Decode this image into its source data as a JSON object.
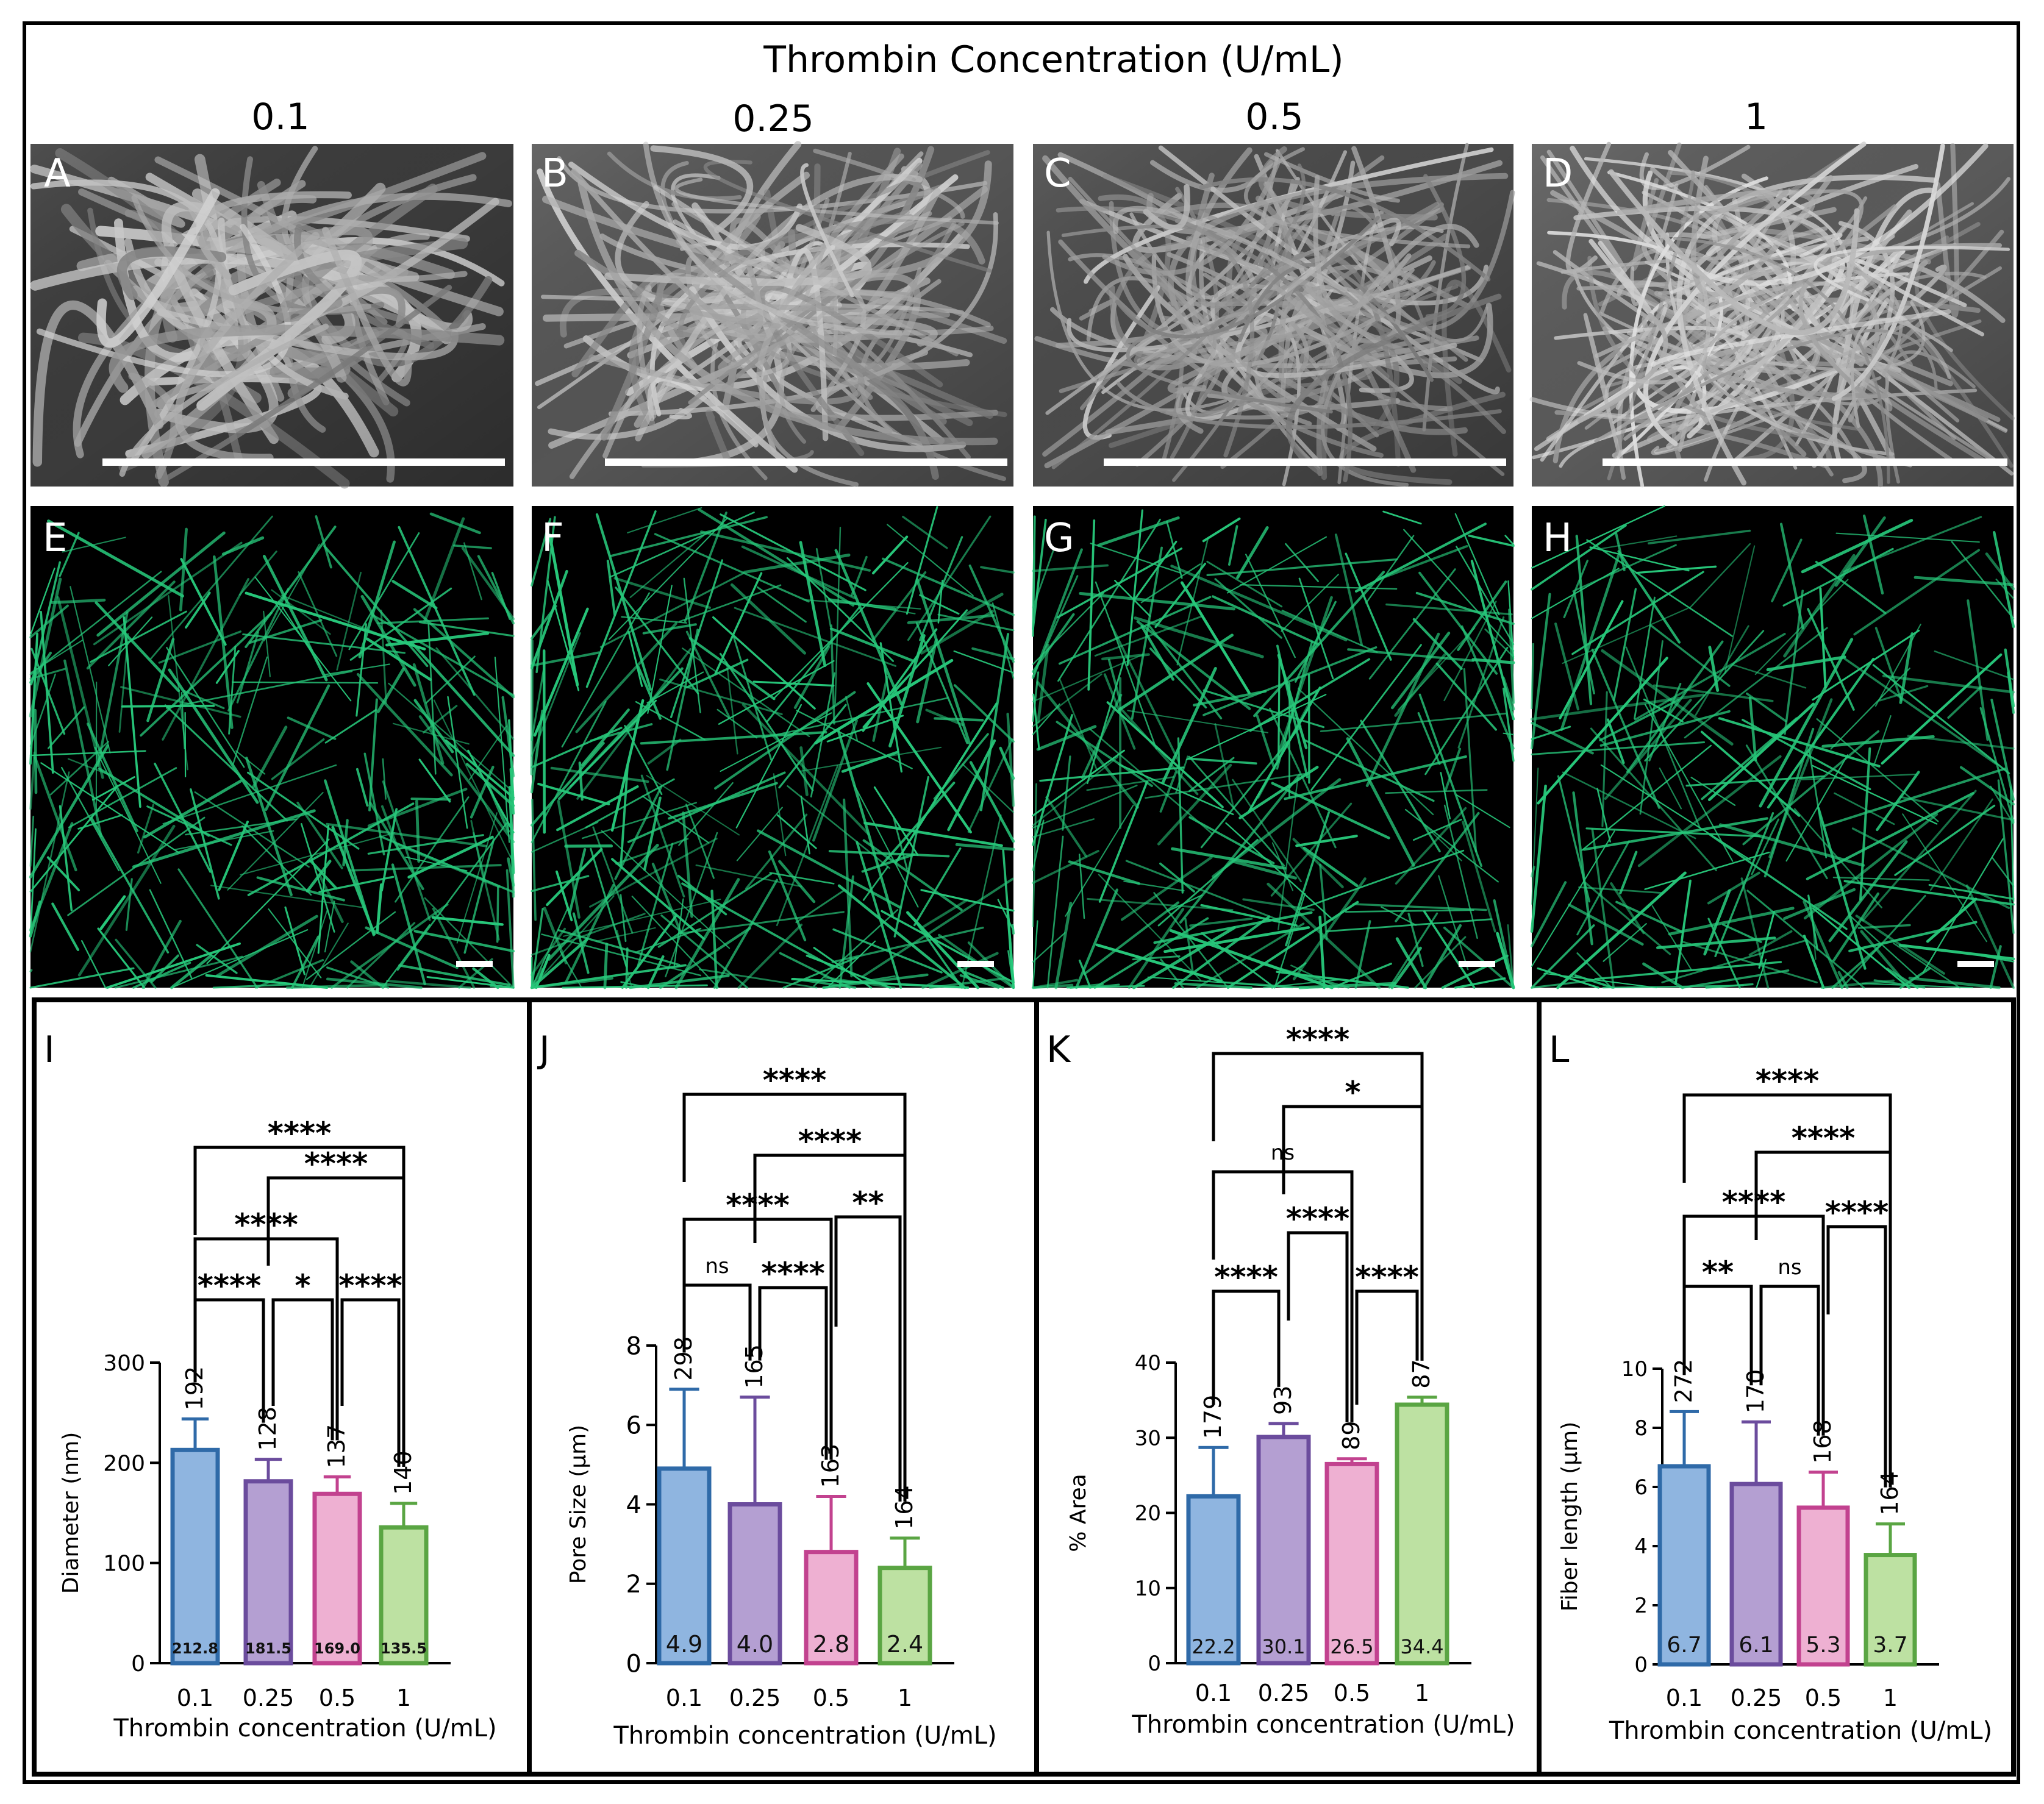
{
  "header": {
    "title": "Thrombin Concentration (U/mL)",
    "columns": [
      "0.1",
      "0.25",
      "0.5",
      "1"
    ]
  },
  "sem_panels": [
    {
      "letter": "A"
    },
    {
      "letter": "B"
    },
    {
      "letter": "C"
    },
    {
      "letter": "D"
    }
  ],
  "confocal_panels": [
    {
      "letter": "E"
    },
    {
      "letter": "F"
    },
    {
      "letter": "G"
    },
    {
      "letter": "H"
    }
  ],
  "colors": {
    "blue_fill": "#8fb5e0",
    "blue_edge": "#2f6aa8",
    "purple_fill": "#b49fd2",
    "purple_edge": "#6b4c9d",
    "pink_fill": "#eeb0d2",
    "pink_edge": "#c2428f",
    "green_fill": "#bde1a2",
    "green_edge": "#5aa543",
    "fiber_green": "#27c77a"
  },
  "chart_data": [
    {
      "letter": "I",
      "type": "bar",
      "categories": [
        "0.1",
        "0.25",
        "0.5",
        "1"
      ],
      "values": [
        212.8,
        181.5,
        169.0,
        135.5
      ],
      "value_labels": [
        "212.8",
        "181.5",
        "169.0",
        "135.5"
      ],
      "errors": [
        31,
        22,
        17,
        24
      ],
      "n_labels": [
        "192",
        "128",
        "137",
        "140"
      ],
      "xlabel": "Thrombin concentration (U/mL)",
      "ylabel": "Diameter (nm)",
      "ylim": [
        0,
        300
      ],
      "yticks": [
        "0",
        "100",
        "200",
        "300"
      ],
      "significance": [
        {
          "from": "0.1",
          "to": "0.25",
          "label": "****"
        },
        {
          "from": "0.25",
          "to": "0.5",
          "label": "*"
        },
        {
          "from": "0.5",
          "to": "1",
          "label": "****"
        },
        {
          "from": "0.1",
          "to": "0.5",
          "label": "****"
        },
        {
          "from": "0.25",
          "to": "1",
          "label": "****"
        },
        {
          "from": "0.1",
          "to": "1",
          "label": "****"
        }
      ]
    },
    {
      "letter": "J",
      "type": "bar",
      "categories": [
        "0.1",
        "0.25",
        "0.5",
        "1"
      ],
      "values": [
        4.9,
        4.0,
        2.8,
        2.4
      ],
      "value_labels": [
        "4.9",
        "4.0",
        "2.8",
        "2.4"
      ],
      "errors": [
        2.0,
        2.7,
        1.4,
        0.75
      ],
      "n_labels": [
        "298",
        "165",
        "163",
        "164"
      ],
      "xlabel": "Thrombin concentration (U/mL)",
      "ylabel": "Pore Size (µm)",
      "ylim": [
        0,
        8
      ],
      "yticks": [
        "0",
        "2",
        "4",
        "6",
        "8"
      ],
      "significance": [
        {
          "from": "0.1",
          "to": "0.25",
          "label": "ns"
        },
        {
          "from": "0.25",
          "to": "0.5",
          "label": "****"
        },
        {
          "from": "0.5",
          "to": "1",
          "label": "**"
        },
        {
          "from": "0.1",
          "to": "0.5",
          "label": "****"
        },
        {
          "from": "0.25",
          "to": "1",
          "label": "****"
        },
        {
          "from": "0.1",
          "to": "1",
          "label": "****"
        }
      ]
    },
    {
      "letter": "K",
      "type": "bar",
      "categories": [
        "0.1",
        "0.25",
        "0.5",
        "1"
      ],
      "values": [
        22.2,
        30.1,
        26.5,
        34.4
      ],
      "value_labels": [
        "22.2",
        "30.1",
        "26.5",
        "34.4"
      ],
      "errors": [
        6.5,
        1.8,
        0.7,
        1.0
      ],
      "n_labels": [
        "179",
        "93",
        "89",
        "87"
      ],
      "xlabel": "Thrombin concentration (U/mL)",
      "ylabel": "% Area",
      "ylim": [
        0,
        40
      ],
      "yticks": [
        "0",
        "10",
        "20",
        "30",
        "40"
      ],
      "significance": [
        {
          "from": "0.1",
          "to": "0.25",
          "label": "****"
        },
        {
          "from": "0.5",
          "to": "1",
          "label": "****"
        },
        {
          "from": "0.25",
          "to": "0.5",
          "label": "****"
        },
        {
          "from": "0.1",
          "to": "0.5",
          "label": "ns"
        },
        {
          "from": "0.25",
          "to": "1",
          "label": "*"
        },
        {
          "from": "0.1",
          "to": "1",
          "label": "****"
        }
      ]
    },
    {
      "letter": "L",
      "type": "bar",
      "categories": [
        "0.1",
        "0.25",
        "0.5",
        "1"
      ],
      "values": [
        6.7,
        6.1,
        5.3,
        3.7
      ],
      "value_labels": [
        "6.7",
        "6.1",
        "5.3",
        "3.7"
      ],
      "errors": [
        1.85,
        2.1,
        1.2,
        1.05
      ],
      "n_labels": [
        "272",
        "170",
        "168",
        "164"
      ],
      "xlabel": "Thrombin concentration (U/mL)",
      "ylabel": "Fiber length (µm)",
      "ylim": [
        0,
        10
      ],
      "yticks": [
        "0",
        "2",
        "4",
        "6",
        "8",
        "10"
      ],
      "significance": [
        {
          "from": "0.1",
          "to": "0.25",
          "label": "**"
        },
        {
          "from": "0.25",
          "to": "0.5",
          "label": "ns"
        },
        {
          "from": "0.5",
          "to": "1",
          "label": "****"
        },
        {
          "from": "0.1",
          "to": "0.5",
          "label": "****"
        },
        {
          "from": "0.25",
          "to": "1",
          "label": "****"
        },
        {
          "from": "0.1",
          "to": "1",
          "label": "****"
        }
      ]
    }
  ]
}
